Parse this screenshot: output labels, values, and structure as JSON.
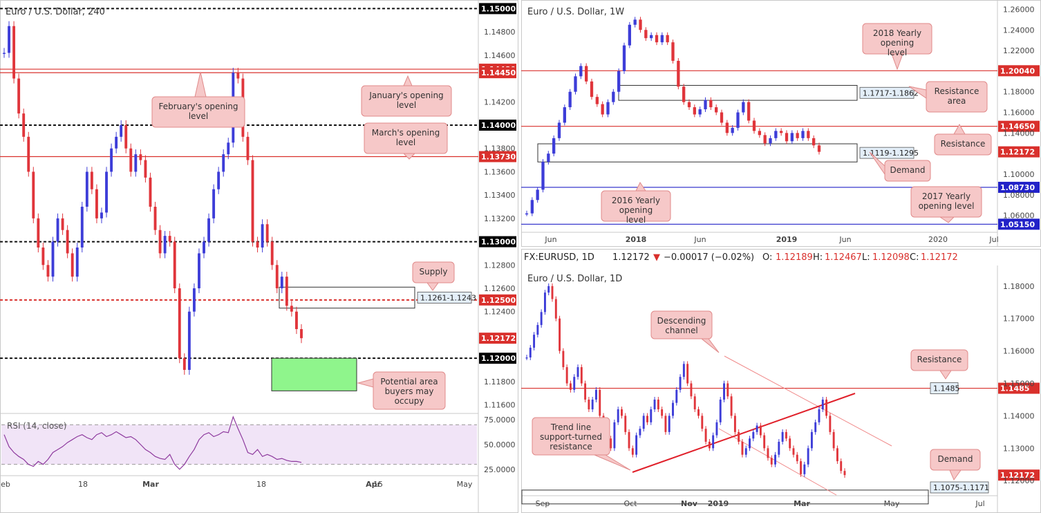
{
  "colors": {
    "up": "#3d3dd8",
    "down": "#e0353b",
    "level": "#d9302c",
    "blue": "#2222c8",
    "rsi": "#8e3a9e",
    "rsiFill": "#f1e4f7",
    "green": "#8ff58c",
    "callout": "#f6c8c8",
    "calloutBorder": "#e08a8a"
  },
  "info_bar": {
    "symbol": "FX:EURUSD, 1D",
    "price": "1.12172",
    "change": "−0.00017 (−0.02%)",
    "o_label": "O:",
    "o": "1.12189",
    "h_label": "H:",
    "h": "1.12467",
    "l_label": "L:",
    "l": "1.12098",
    "c_label": "C:",
    "c": "1.12172"
  },
  "chart_data": [
    {
      "id": "h4",
      "type": "line",
      "title": "Euro / U.S. Dollar, 240",
      "ylim": [
        1.1155,
        1.1505
      ],
      "x_ticks": [
        "eb",
        "18",
        "Mar",
        "18",
        "Apr",
        "15",
        "May"
      ],
      "y_ticks": [
        "1.14800",
        "1.14600",
        "1.14200",
        "1.13800",
        "1.13600",
        "1.13400",
        "1.13200",
        "1.12800",
        "1.12600",
        "1.12400",
        "1.11800",
        "1.11600"
      ],
      "levels": [
        {
          "value": "1.15000",
          "y": 1.15,
          "style": "black-dash"
        },
        {
          "value": "1.14480",
          "y": 1.1448,
          "style": "red"
        },
        {
          "value": "1.14450",
          "y": 1.1445,
          "style": "red"
        },
        {
          "value": "1.14000",
          "y": 1.14,
          "style": "black-dash"
        },
        {
          "value": "1.13730",
          "y": 1.1373,
          "style": "red"
        },
        {
          "value": "1.13000",
          "y": 1.13,
          "style": "black-dash"
        },
        {
          "value": "1.12500",
          "y": 1.125,
          "style": "red-dash"
        },
        {
          "value": "1.12172",
          "y": 1.12172,
          "style": "price"
        },
        {
          "value": "1.12000",
          "y": 1.12,
          "style": "black-dash"
        }
      ],
      "price_series": [
        1.1462,
        1.1485,
        1.144,
        1.141,
        1.139,
        1.136,
        1.132,
        1.1295,
        1.128,
        1.127,
        1.13,
        1.132,
        1.131,
        1.129,
        1.127,
        1.1295,
        1.133,
        1.136,
        1.1345,
        1.132,
        1.1325,
        1.136,
        1.138,
        1.139,
        1.14,
        1.138,
        1.136,
        1.1375,
        1.137,
        1.1355,
        1.133,
        1.131,
        1.129,
        1.1305,
        1.13,
        1.126,
        1.12,
        1.119,
        1.124,
        1.126,
        1.129,
        1.13,
        1.132,
        1.1345,
        1.136,
        1.1375,
        1.1385,
        1.1445,
        1.144,
        1.139,
        1.137,
        1.13,
        1.1295,
        1.1315,
        1.13,
        1.128,
        1.126,
        1.127,
        1.1245,
        1.124,
        1.1225,
        1.12172
      ],
      "supply_zone": {
        "label": "1.1261-1.1243",
        "top": 1.1261,
        "bottom": 1.1243
      },
      "buyer_zone": {
        "top": 1.12,
        "bottom": 1.1172
      },
      "callouts": [
        "February's opening level",
        "January's opening level",
        "March's opening level",
        "Supply",
        "Potential area buyers may occupy"
      ],
      "rsi": {
        "label": "RSI (14, close)",
        "ticks": [
          "75.0000",
          "50.0000",
          "25.0000"
        ],
        "ylim": [
          20,
          80
        ],
        "upper": 70,
        "lower": 30,
        "values": [
          60,
          48,
          42,
          38,
          35,
          30,
          28,
          33,
          30,
          35,
          42,
          45,
          48,
          52,
          55,
          58,
          60,
          57,
          55,
          60,
          62,
          58,
          60,
          63,
          60,
          57,
          58,
          55,
          50,
          45,
          42,
          38,
          36,
          35,
          40,
          30,
          25,
          30,
          38,
          45,
          55,
          60,
          62,
          58,
          60,
          63,
          62,
          78,
          66,
          55,
          42,
          40,
          45,
          38,
          40,
          38,
          35,
          36,
          34,
          33,
          33,
          32
        ]
      }
    },
    {
      "id": "weekly",
      "type": "line",
      "title": "Euro / U.S. Dollar, 1W",
      "ylim": [
        1.045,
        1.265
      ],
      "x_ticks": [
        "Jun",
        "2018",
        "Jun",
        "2019",
        "Jun",
        "2020",
        "Jul"
      ],
      "y_ticks": [
        "1.26000",
        "1.24000",
        "1.22000",
        "1.18000",
        "1.16000",
        "1.14000",
        "1.10000",
        "1.08000",
        "1.06000"
      ],
      "levels": [
        {
          "value": "1.20040",
          "y": 1.2004,
          "style": "red"
        },
        {
          "value": "1.14650",
          "y": 1.1465,
          "style": "red"
        },
        {
          "value": "1.12172",
          "y": 1.12172,
          "style": "price"
        },
        {
          "value": "1.08730",
          "y": 1.0873,
          "style": "blue"
        },
        {
          "value": "1.05150",
          "y": 1.0515,
          "style": "blue"
        }
      ],
      "zones": [
        {
          "label": "1.1717-1.1862",
          "top": 1.1862,
          "bottom": 1.1717
        },
        {
          "label": "1.1119-1.1295",
          "top": 1.1295,
          "bottom": 1.1119
        }
      ],
      "price_series": [
        1.062,
        1.075,
        1.085,
        1.112,
        1.12,
        1.135,
        1.15,
        1.165,
        1.18,
        1.195,
        1.205,
        1.19,
        1.175,
        1.168,
        1.158,
        1.17,
        1.18,
        1.2,
        1.225,
        1.245,
        1.25,
        1.24,
        1.232,
        1.235,
        1.228,
        1.235,
        1.228,
        1.21,
        1.185,
        1.17,
        1.165,
        1.158,
        1.163,
        1.172,
        1.165,
        1.16,
        1.15,
        1.14,
        1.145,
        1.16,
        1.17,
        1.152,
        1.142,
        1.138,
        1.13,
        1.135,
        1.142,
        1.14,
        1.132,
        1.14,
        1.135,
        1.142,
        1.135,
        1.128,
        1.12172
      ],
      "callouts": [
        "2018 Yearly opening level",
        "Resistance area",
        "Resistance",
        "Demand",
        "2016 Yearly opening level",
        "2017 Yearly opening level"
      ]
    },
    {
      "id": "daily",
      "type": "line",
      "title": "Euro / U.S. Dollar, 1D",
      "ylim": [
        1.116,
        1.1855
      ],
      "x_ticks": [
        "Sep",
        "Oct",
        "Nov",
        "2019",
        "Mar",
        "May",
        "Jul"
      ],
      "y_ticks": [
        "1.18000",
        "1.17000",
        "1.16000",
        "1.15000",
        "1.14000",
        "1.13000",
        "1.12000"
      ],
      "levels": [
        {
          "value": "1.1485",
          "y": 1.1485,
          "style": "red"
        },
        {
          "value": "1.12172",
          "y": 1.12172,
          "style": "price"
        }
      ],
      "demand_zone": {
        "label": "1.1075-1.1171",
        "top": 1.1171,
        "bottom": 1.1075
      },
      "price_series": [
        1.158,
        1.161,
        1.165,
        1.168,
        1.172,
        1.178,
        1.18,
        1.176,
        1.17,
        1.16,
        1.155,
        1.15,
        1.148,
        1.152,
        1.155,
        1.15,
        1.145,
        1.142,
        1.145,
        1.148,
        1.14,
        1.135,
        1.133,
        1.13,
        1.138,
        1.142,
        1.14,
        1.135,
        1.13,
        1.128,
        1.134,
        1.136,
        1.14,
        1.138,
        1.142,
        1.145,
        1.142,
        1.14,
        1.135,
        1.14,
        1.144,
        1.148,
        1.152,
        1.156,
        1.15,
        1.146,
        1.142,
        1.14,
        1.136,
        1.132,
        1.13,
        1.134,
        1.138,
        1.145,
        1.15,
        1.146,
        1.14,
        1.135,
        1.132,
        1.128,
        1.13,
        1.133,
        1.135,
        1.137,
        1.134,
        1.13,
        1.127,
        1.125,
        1.128,
        1.132,
        1.135,
        1.133,
        1.13,
        1.128,
        1.126,
        1.122,
        1.125,
        1.13,
        1.135,
        1.138,
        1.142,
        1.145,
        1.14,
        1.135,
        1.13,
        1.126,
        1.123,
        1.12172
      ],
      "callouts": [
        "Descending channel",
        "Resistance",
        "Trend line support-turned resistance",
        "Demand"
      ]
    }
  ]
}
